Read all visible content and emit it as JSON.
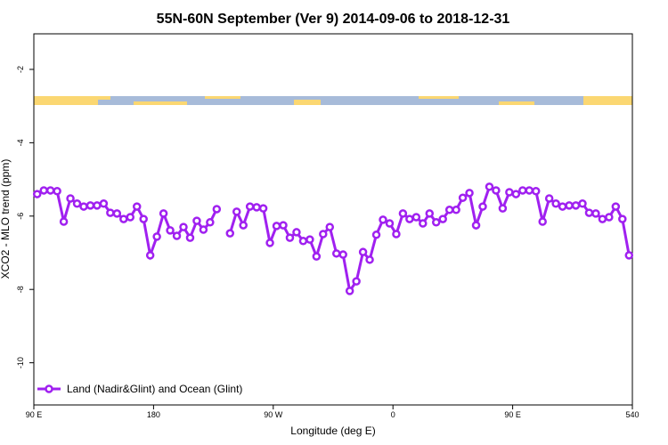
{
  "chart_data": {
    "type": "line",
    "title": "55N-60N September (Ver 9)   2014-09-06 to 2018-12-31",
    "x_label": "Longitude (deg E)",
    "y_label": "XCO2 - MLO trend (ppm)",
    "x": [
      92.5,
      97.5,
      102.5,
      107.5,
      112.5,
      117.5,
      122.5,
      127.5,
      132.5,
      137.5,
      142.5,
      147.5,
      152.5,
      157.5,
      162.5,
      167.5,
      172.5,
      177.5,
      182.5,
      187.5,
      192.5,
      197.5,
      202.5,
      207.5,
      212.5,
      217.5,
      222.5,
      227.5,
      232.5,
      237.5,
      242.5,
      247.5,
      252.5,
      257.5,
      262.5,
      267.5,
      272.5,
      277.5,
      282.5,
      287.5,
      292.5,
      297.5,
      302.5,
      307.5,
      312.5,
      317.5,
      322.5,
      327.5,
      332.5,
      337.5,
      342.5,
      347.5,
      352.5,
      357.5,
      362.5,
      367.5,
      372.5,
      377.5,
      382.5,
      387.5,
      392.5,
      397.5,
      402.5,
      407.5,
      412.5,
      417.5,
      422.5,
      427.5,
      432.5,
      437.5,
      442.5,
      447.5,
      452.5,
      457.5,
      462.5,
      467.5,
      472.5,
      477.5,
      482.5,
      487.5,
      492.5,
      497.5,
      502.5,
      507.5,
      512.5,
      517.5,
      522.5,
      527.5,
      532.5,
      537.5
    ],
    "series": [
      {
        "name": "Land (Nadir&Glint) and Ocean (Glint)",
        "color": "#a020f0",
        "values": [
          -5.4,
          -5.3,
          -5.3,
          -5.32,
          -6.15,
          -5.52,
          -5.66,
          -5.74,
          -5.71,
          -5.71,
          -5.66,
          -5.91,
          -5.93,
          -6.08,
          -6.03,
          -5.74,
          -6.08,
          -7.07,
          -6.56,
          -5.93,
          -6.39,
          -6.54,
          -6.3,
          -6.59,
          -6.13,
          -6.37,
          -6.17,
          -5.81,
          null,
          -6.47,
          -5.88,
          -6.25,
          -5.74,
          -5.76,
          -5.79,
          -6.73,
          -6.27,
          -6.25,
          -6.59,
          -6.44,
          -6.68,
          -6.64,
          -7.1,
          -6.49,
          -6.3,
          -7.02,
          -7.05,
          -8.04,
          -7.78,
          -6.98,
          -7.19,
          -6.51,
          -6.1,
          -6.2,
          -6.49,
          -5.93,
          -6.08,
          -6.03,
          -6.2,
          -5.93,
          -6.17,
          -6.08,
          -5.83,
          -5.83,
          -5.5,
          -5.37,
          -6.25,
          -5.74,
          -5.2,
          -5.3,
          -5.79,
          -5.35,
          -5.4,
          -5.3,
          -5.3,
          -5.32,
          -6.15,
          -5.52,
          -5.66,
          -5.74,
          -5.71,
          -5.71,
          -5.66,
          -5.91,
          -5.93,
          -6.08,
          -6.03,
          -5.74,
          -6.08,
          -7.07
        ]
      }
    ],
    "xlim": [
      90,
      540
    ],
    "xticks": [
      {
        "value": 90,
        "label": "90 E"
      },
      180,
      {
        "value": 270,
        "label": "90 W"
      },
      {
        "value": 360,
        "label": "0"
      },
      {
        "value": 450,
        "label": "90 E"
      },
      540
    ],
    "ylim": [
      -11.15,
      -1.03
    ],
    "yticks": [
      -10,
      -8,
      -6,
      -4,
      -2
    ],
    "legend": "bottom-left"
  }
}
